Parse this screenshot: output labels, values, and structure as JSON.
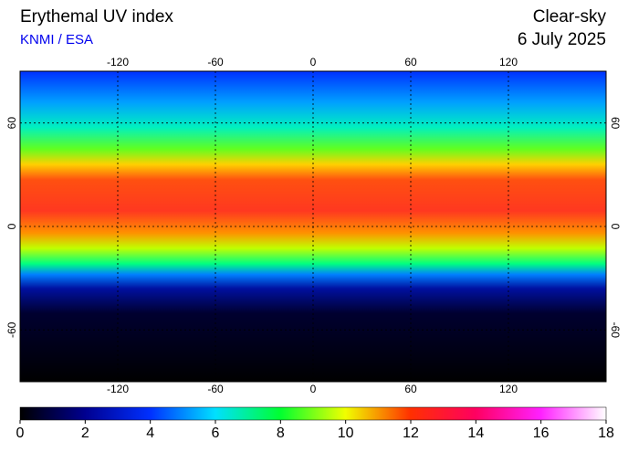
{
  "header": {
    "title": "Erythemal UV index",
    "source": "KNMI / ESA",
    "condition": "Clear-sky",
    "date": "6 July 2025"
  },
  "map": {
    "lon_lim": [
      -180,
      180
    ],
    "lat_lim": [
      90,
      -90
    ],
    "lon_ticks": [
      -120,
      -60,
      0,
      60,
      120
    ],
    "lat_ticks": [
      60,
      0,
      -60
    ]
  },
  "colorbar": {
    "lim": [
      0,
      18
    ],
    "ticks": [
      0,
      2,
      4,
      6,
      8,
      10,
      12,
      14,
      16,
      18
    ]
  }
}
